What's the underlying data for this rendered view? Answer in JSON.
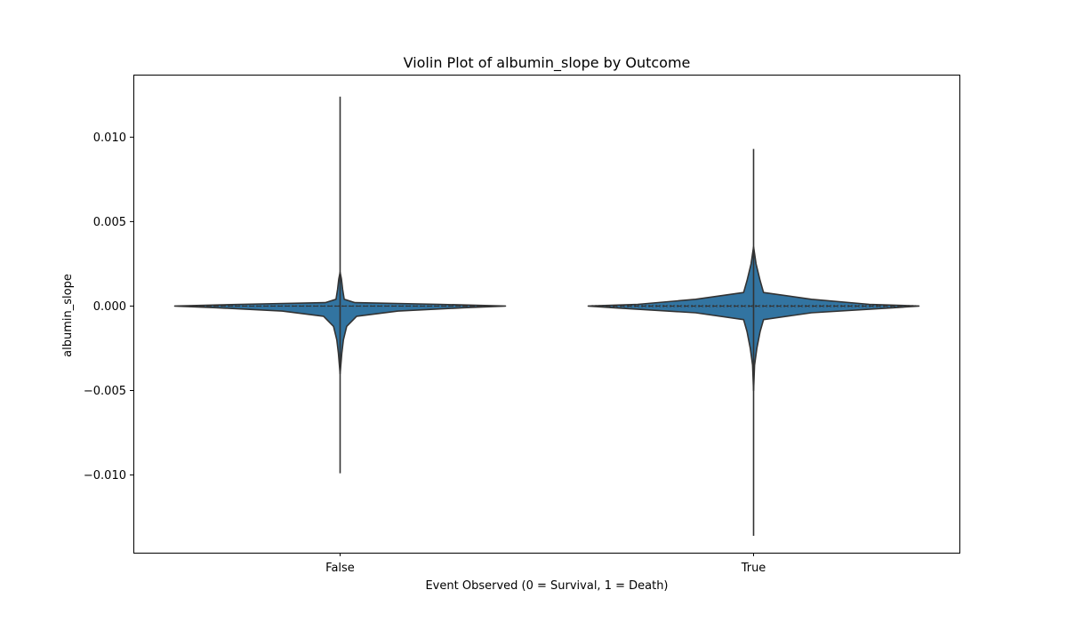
{
  "chart_data": {
    "type": "violin",
    "title": "Violin Plot of albumin_slope by Outcome",
    "xlabel": "Event Observed (0 = Survival, 1 = Death)",
    "ylabel": "albumin_slope",
    "categories": [
      "False",
      "True"
    ],
    "ylim": [
      -0.0146,
      0.0137
    ],
    "yticks": [
      0.01,
      0.005,
      0.0,
      -0.005,
      -0.01
    ],
    "ytick_labels": [
      "0.010",
      "0.005",
      "0.000",
      "−0.005",
      "−0.010"
    ],
    "grid": false,
    "fill_color": "#3274a1",
    "line_color": "#333333",
    "violins": [
      {
        "category": "False",
        "min": -0.0099,
        "max": 0.0124,
        "median": 0.0,
        "q1": -2e-05,
        "q3": 2e-05,
        "profile": [
          {
            "y": -0.004,
            "w": 0.0
          },
          {
            "y": -0.0028,
            "w": 0.01
          },
          {
            "y": -0.002,
            "w": 0.02
          },
          {
            "y": -0.0012,
            "w": 0.04
          },
          {
            "y": -0.0006,
            "w": 0.1
          },
          {
            "y": -0.0003,
            "w": 0.35
          },
          {
            "y": -0.0001,
            "w": 0.75
          },
          {
            "y": 0.0,
            "w": 1.0
          },
          {
            "y": 0.0001,
            "w": 0.6
          },
          {
            "y": 0.0002,
            "w": 0.09
          },
          {
            "y": 0.0004,
            "w": 0.025
          },
          {
            "y": 0.001,
            "w": 0.015
          },
          {
            "y": 0.0016,
            "w": 0.008
          },
          {
            "y": 0.002,
            "w": 0.0
          }
        ]
      },
      {
        "category": "True",
        "min": -0.0136,
        "max": 0.0093,
        "median": 0.0,
        "q1": -4e-05,
        "q3": 4e-05,
        "profile": [
          {
            "y": -0.005,
            "w": 0.0
          },
          {
            "y": -0.0035,
            "w": 0.006
          },
          {
            "y": -0.0025,
            "w": 0.02
          },
          {
            "y": -0.0015,
            "w": 0.04
          },
          {
            "y": -0.0008,
            "w": 0.06
          },
          {
            "y": -0.0004,
            "w": 0.35
          },
          {
            "y": -0.0001,
            "w": 0.85
          },
          {
            "y": 0.0,
            "w": 1.0
          },
          {
            "y": 0.0001,
            "w": 0.7
          },
          {
            "y": 0.0004,
            "w": 0.35
          },
          {
            "y": 0.0008,
            "w": 0.06
          },
          {
            "y": 0.0015,
            "w": 0.04
          },
          {
            "y": 0.0025,
            "w": 0.015
          },
          {
            "y": 0.0035,
            "w": 0.0
          }
        ]
      }
    ]
  }
}
